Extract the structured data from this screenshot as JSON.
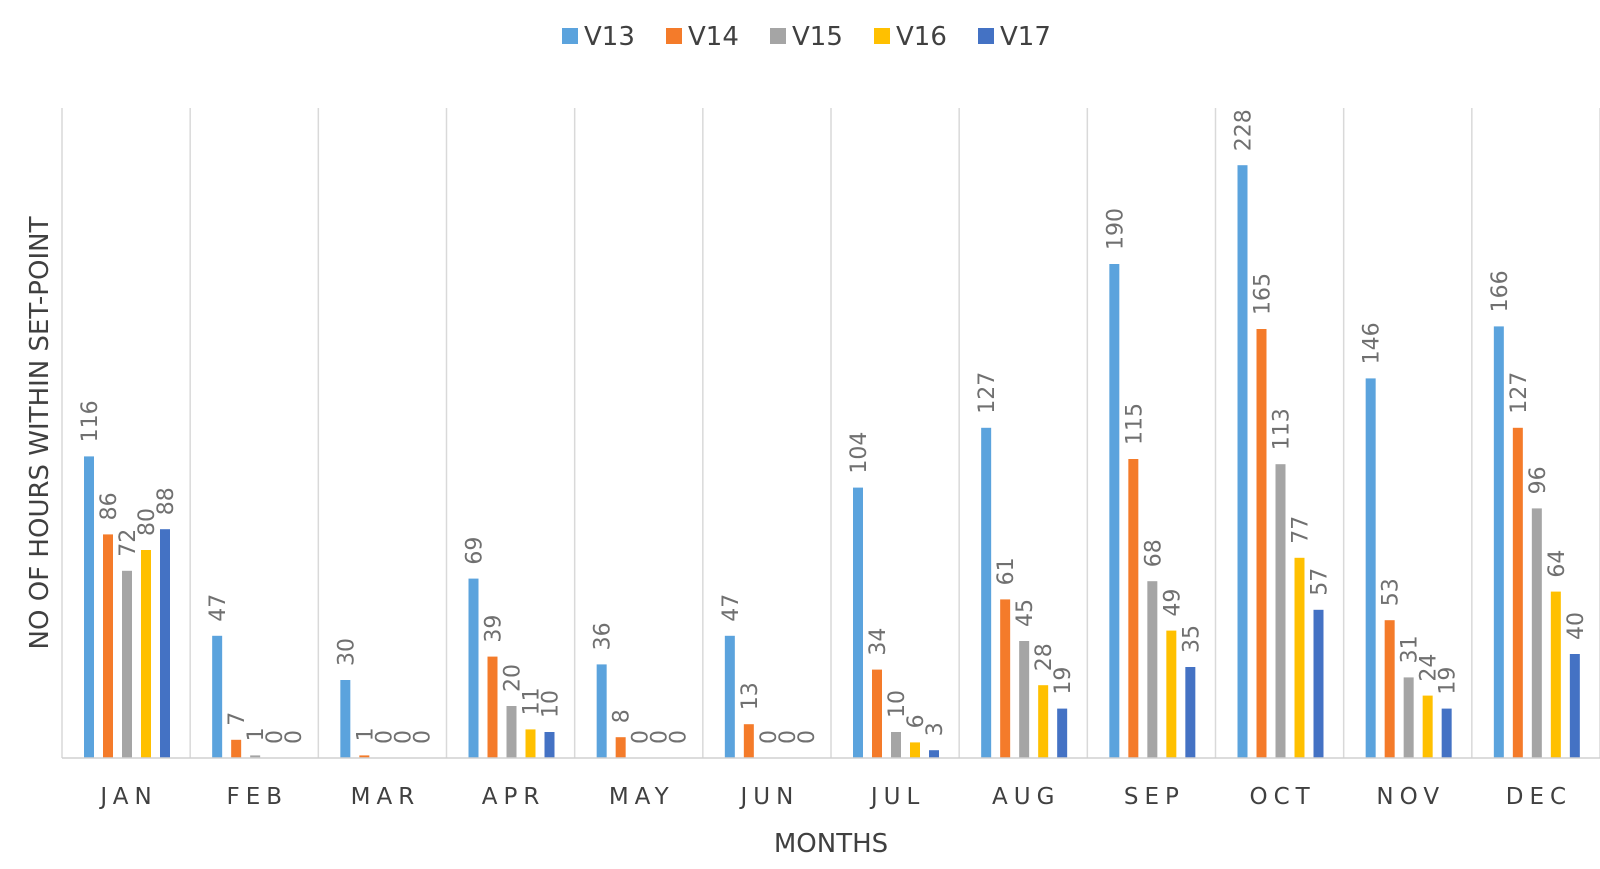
{
  "chart_data": {
    "type": "bar",
    "xlabel": "MONTHS",
    "ylabel": "NO OF HOURS WITHIN SET-POINT",
    "ylim": [
      0,
      250
    ],
    "grid": "vertical separators between categories",
    "legend_position": "top-center",
    "categories": [
      "JAN",
      "FEB",
      "MAR",
      "APR",
      "MAY",
      "JUN",
      "JUL",
      "AUG",
      "SEP",
      "OCT",
      "NOV",
      "DEC"
    ],
    "series": [
      {
        "name": "V13",
        "color": "#5BA3DD",
        "values": [
          116,
          47,
          30,
          69,
          36,
          47,
          104,
          127,
          190,
          228,
          146,
          166
        ]
      },
      {
        "name": "V14",
        "color": "#F47B2A",
        "values": [
          86,
          7,
          1,
          39,
          8,
          13,
          34,
          61,
          115,
          165,
          53,
          127
        ]
      },
      {
        "name": "V15",
        "color": "#A5A5A5",
        "values": [
          72,
          1,
          0,
          20,
          0,
          0,
          10,
          45,
          68,
          113,
          31,
          96
        ]
      },
      {
        "name": "V16",
        "color": "#FFC000",
        "values": [
          80,
          0,
          0,
          11,
          0,
          0,
          6,
          28,
          49,
          77,
          24,
          64
        ]
      },
      {
        "name": "V17",
        "color": "#4472C4",
        "values": [
          88,
          0,
          0,
          10,
          0,
          0,
          3,
          19,
          35,
          57,
          19,
          40
        ]
      }
    ]
  }
}
